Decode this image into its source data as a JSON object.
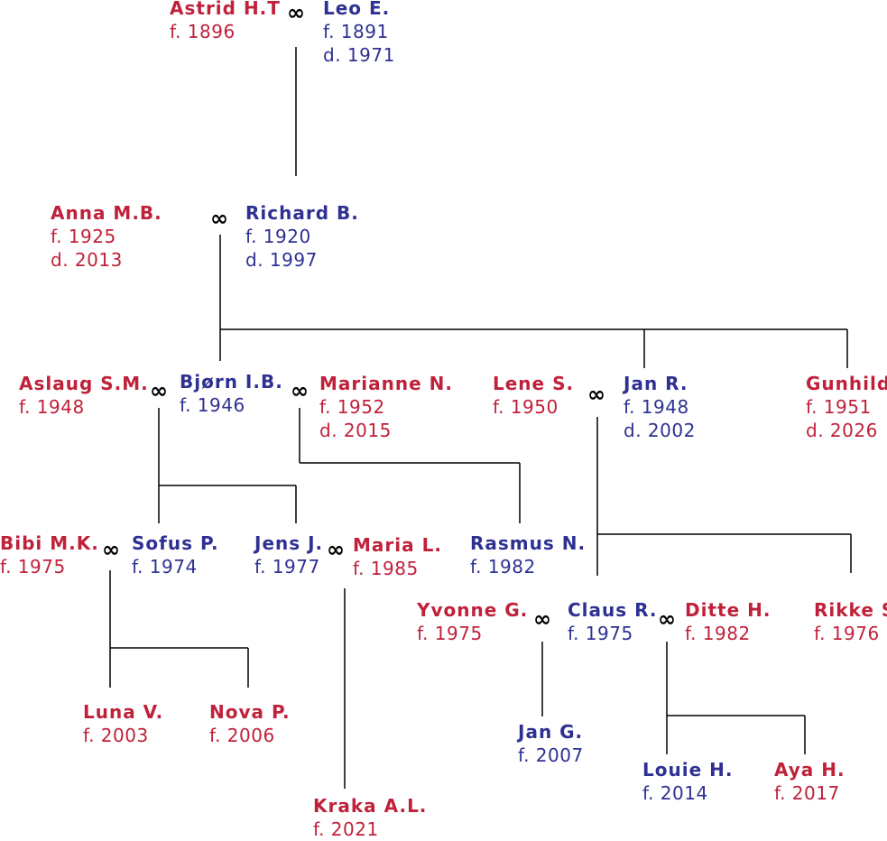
{
  "colors": {
    "female": "#c0213a",
    "male": "#2e3192",
    "line": "#000000"
  },
  "marriage_symbol": "∞",
  "persons": [
    {
      "id": "astrid",
      "name": "Astrid H.T",
      "sex": "f",
      "lines": [
        "f.  1896"
      ]
    },
    {
      "id": "leo",
      "name": "Leo E.",
      "sex": "m",
      "lines": [
        "f.  1891",
        "d. 1971"
      ]
    },
    {
      "id": "anna",
      "name": "Anna M.B.",
      "sex": "f",
      "lines": [
        "f.  1925",
        "d. 2013"
      ]
    },
    {
      "id": "richard",
      "name": "Richard B.",
      "sex": "m",
      "lines": [
        "f.  1920",
        "d. 1997"
      ]
    },
    {
      "id": "aslaug",
      "name": "Aslaug S.M.",
      "sex": "f",
      "lines": [
        "f.  1948"
      ]
    },
    {
      "id": "bjorn",
      "name": "Bjørn I.B.",
      "sex": "m",
      "lines": [
        "f. 1946"
      ]
    },
    {
      "id": "marianne",
      "name": "Marianne N.",
      "sex": "f",
      "lines": [
        "f.  1952",
        "d. 2015"
      ]
    },
    {
      "id": "lene",
      "name": "Lene S.",
      "sex": "f",
      "lines": [
        "f.  1950"
      ]
    },
    {
      "id": "janr",
      "name": "Jan R.",
      "sex": "m",
      "lines": [
        "f. 1948",
        "d. 2002"
      ]
    },
    {
      "id": "gunhild",
      "name": "Gunhild",
      "sex": "f",
      "lines": [
        "f.  1951",
        "d. 2026"
      ]
    },
    {
      "id": "bibi",
      "name": "Bibi M.K.",
      "sex": "f",
      "lines": [
        "f.  1975"
      ]
    },
    {
      "id": "sofus",
      "name": "Sofus P.",
      "sex": "m",
      "lines": [
        "f.  1974"
      ]
    },
    {
      "id": "jens",
      "name": "Jens J.",
      "sex": "m",
      "lines": [
        "f.  1977"
      ]
    },
    {
      "id": "maria",
      "name": "Maria L.",
      "sex": "f",
      "lines": [
        "f.  1985"
      ]
    },
    {
      "id": "rasmus",
      "name": "Rasmus N.",
      "sex": "m",
      "lines": [
        "f.  1982"
      ]
    },
    {
      "id": "yvonne",
      "name": "Yvonne G.",
      "sex": "f",
      "lines": [
        "f. 1975"
      ]
    },
    {
      "id": "claus",
      "name": "Claus R.",
      "sex": "m",
      "lines": [
        "f.  1975"
      ]
    },
    {
      "id": "ditte",
      "name": "Ditte H.",
      "sex": "f",
      "lines": [
        "f.  1982"
      ]
    },
    {
      "id": "rikke",
      "name": "Rikke S.",
      "sex": "f",
      "lines": [
        "f.  1976"
      ]
    },
    {
      "id": "luna",
      "name": "Luna V.",
      "sex": "f",
      "lines": [
        "f.  2003"
      ]
    },
    {
      "id": "nova",
      "name": "Nova P.",
      "sex": "f",
      "lines": [
        "f.  2006"
      ]
    },
    {
      "id": "jang",
      "name": "Jan G.",
      "sex": "m",
      "lines": [
        "f.  2007"
      ]
    },
    {
      "id": "louie",
      "name": "Louie H.",
      "sex": "m",
      "lines": [
        "f.  2014"
      ]
    },
    {
      "id": "aya",
      "name": "Aya H.",
      "sex": "f",
      "lines": [
        "f. 2017"
      ]
    },
    {
      "id": "kraka",
      "name": "Kraka A.L.",
      "sex": "f",
      "lines": [
        "f. 2021"
      ]
    }
  ],
  "marriages": [
    {
      "id": "astrid-leo",
      "partners": [
        "astrid",
        "leo"
      ]
    },
    {
      "id": "anna-richard",
      "partners": [
        "anna",
        "richard"
      ]
    },
    {
      "id": "aslaug-bjorn",
      "partners": [
        "aslaug",
        "bjorn"
      ]
    },
    {
      "id": "bjorn-marianne",
      "partners": [
        "bjorn",
        "marianne"
      ]
    },
    {
      "id": "lene-janr",
      "partners": [
        "lene",
        "janr"
      ]
    },
    {
      "id": "bibi-sofus",
      "partners": [
        "bibi",
        "sofus"
      ]
    },
    {
      "id": "jens-maria",
      "partners": [
        "jens",
        "maria"
      ]
    },
    {
      "id": "yvonne-claus",
      "partners": [
        "yvonne",
        "claus"
      ]
    },
    {
      "id": "claus-ditte",
      "partners": [
        "claus",
        "ditte"
      ]
    }
  ],
  "descent": [
    {
      "from": "astrid-leo",
      "children": [
        "richard"
      ]
    },
    {
      "from": "anna-richard",
      "children": [
        "bjorn",
        "janr",
        "gunhild"
      ]
    },
    {
      "from": "aslaug-bjorn",
      "children": [
        "sofus",
        "jens"
      ]
    },
    {
      "from": "bjorn-marianne",
      "children": [
        "rasmus"
      ]
    },
    {
      "from": "lene-janr",
      "children": [
        "claus",
        "rikke"
      ]
    },
    {
      "from": "bibi-sofus",
      "children": [
        "luna",
        "nova"
      ]
    },
    {
      "from": "jens-maria",
      "children": [
        "kraka"
      ]
    },
    {
      "from": "yvonne-claus",
      "children": [
        "jang"
      ]
    },
    {
      "from": "claus-ditte",
      "children": [
        "louie",
        "aya"
      ]
    }
  ]
}
